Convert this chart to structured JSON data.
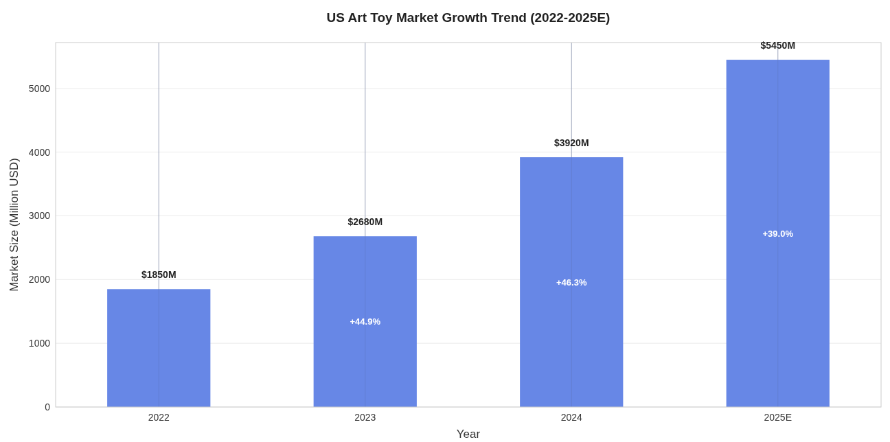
{
  "chart_data": {
    "type": "bar",
    "title": "US Art Toy Market Growth Trend (2022-2025E)",
    "xlabel": "Year",
    "ylabel": "Market Size (Million USD)",
    "categories": [
      "2022",
      "2023",
      "2024",
      "2025E"
    ],
    "values": [
      1850,
      2680,
      3920,
      5450
    ],
    "value_labels": [
      "$1850M",
      "$2680M",
      "$3920M",
      "$5450M"
    ],
    "color": "#6787e6",
    "ylim": [
      0,
      5720
    ],
    "yticks": [
      0,
      1000,
      2000,
      3000,
      4000,
      5000
    ],
    "grid": true,
    "annotations": [
      "+44.9%",
      "+46.3%",
      "+39.0%"
    ]
  }
}
